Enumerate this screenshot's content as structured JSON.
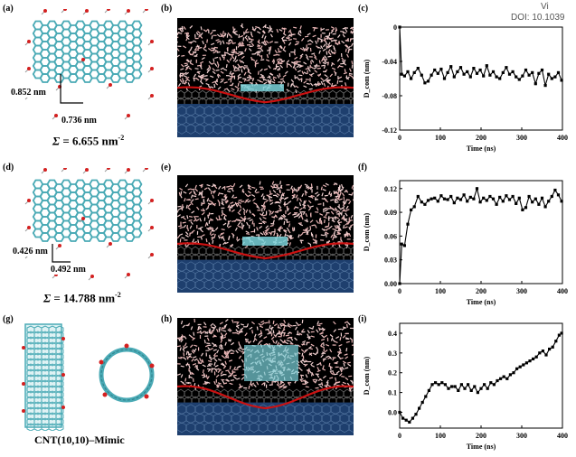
{
  "header": {
    "doi_text": "DOI: 10.1039",
    "doi_prefix": "Vi"
  },
  "panels": {
    "a": {
      "label": "(a)",
      "dim1": "0.852 nm",
      "dim2": "0.736 nm",
      "sigma_value": " = 6.655 nm",
      "sigma_exp": "-2"
    },
    "b": {
      "label": "(b)"
    },
    "c": {
      "label": "(c)"
    },
    "d": {
      "label": "(d)",
      "dim1": "0.426 nm",
      "dim2": "0.492 nm",
      "sigma_value": " = 14.788 nm",
      "sigma_exp": "-2"
    },
    "e": {
      "label": "(e)"
    },
    "f": {
      "label": "(f)"
    },
    "g": {
      "label": "(g)",
      "caption": "CNT(10,10)–Mimic"
    },
    "h": {
      "label": "(h)"
    },
    "i": {
      "label": "(i)"
    }
  },
  "sigma_symbol": "Σ",
  "colors": {
    "graphene": "#4aaab5",
    "water_bg": "#e8b4b4",
    "substrate": "#1e3f6e",
    "interface_curve": "#cc1111",
    "functional_O": "#d42020"
  },
  "chart_data": [
    {
      "id": "c",
      "type": "line",
      "xlabel": "Time (ns)",
      "ylabel": "D_com (nm)",
      "xlim": [
        0,
        400
      ],
      "ylim": [
        -0.12,
        0
      ],
      "xticks": [
        0,
        100,
        200,
        300,
        400
      ],
      "yticks": [
        0,
        -0.04,
        -0.08,
        -0.12
      ],
      "ytick_labels": [
        "0",
        "-0.04",
        "-0.08",
        "-0.12"
      ],
      "series": [
        {
          "x": [
            0,
            5,
            12,
            20,
            28,
            36,
            45,
            54,
            62,
            70,
            78,
            86,
            94,
            102,
            110,
            118,
            126,
            134,
            142,
            150,
            158,
            166,
            174,
            182,
            190,
            198,
            206,
            214,
            222,
            230,
            238,
            246,
            254,
            262,
            270,
            278,
            286,
            294,
            302,
            310,
            318,
            326,
            334,
            342,
            350,
            358,
            366,
            374,
            382,
            390,
            398
          ],
          "y": [
            0,
            -0.055,
            -0.057,
            -0.052,
            -0.06,
            -0.053,
            -0.048,
            -0.056,
            -0.065,
            -0.063,
            -0.056,
            -0.05,
            -0.054,
            -0.049,
            -0.06,
            -0.053,
            -0.046,
            -0.058,
            -0.052,
            -0.047,
            -0.055,
            -0.052,
            -0.058,
            -0.048,
            -0.054,
            -0.05,
            -0.057,
            -0.045,
            -0.056,
            -0.052,
            -0.058,
            -0.06,
            -0.053,
            -0.047,
            -0.055,
            -0.052,
            -0.058,
            -0.061,
            -0.057,
            -0.05,
            -0.056,
            -0.053,
            -0.066,
            -0.054,
            -0.05,
            -0.068,
            -0.055,
            -0.06,
            -0.058,
            -0.053,
            -0.062
          ]
        }
      ]
    },
    {
      "id": "f",
      "type": "line",
      "xlabel": "Time (ns)",
      "ylabel": "D_com (nm)",
      "xlim": [
        0,
        400
      ],
      "ylim": [
        0,
        0.13
      ],
      "xticks": [
        0,
        100,
        200,
        300,
        400
      ],
      "yticks": [
        0,
        0.03,
        0.06,
        0.09,
        0.12
      ],
      "ytick_labels": [
        "0.00",
        "0.03",
        "0.06",
        "0.09",
        "0.12"
      ],
      "series": [
        {
          "x": [
            0,
            5,
            12,
            20,
            28,
            36,
            45,
            54,
            62,
            70,
            78,
            86,
            94,
            102,
            110,
            118,
            126,
            134,
            142,
            150,
            158,
            166,
            174,
            182,
            190,
            198,
            206,
            214,
            222,
            230,
            238,
            246,
            254,
            262,
            270,
            278,
            286,
            294,
            302,
            310,
            318,
            326,
            334,
            342,
            350,
            358,
            366,
            374,
            382,
            390,
            398
          ],
          "y": [
            0,
            0.05,
            0.048,
            0.075,
            0.093,
            0.097,
            0.11,
            0.103,
            0.1,
            0.105,
            0.107,
            0.108,
            0.104,
            0.111,
            0.107,
            0.106,
            0.11,
            0.102,
            0.108,
            0.106,
            0.112,
            0.104,
            0.109,
            0.107,
            0.12,
            0.103,
            0.108,
            0.105,
            0.11,
            0.107,
            0.1,
            0.109,
            0.104,
            0.111,
            0.106,
            0.11,
            0.101,
            0.108,
            0.093,
            0.096,
            0.11,
            0.103,
            0.107,
            0.1,
            0.108,
            0.097,
            0.104,
            0.11,
            0.118,
            0.112,
            0.104
          ]
        }
      ]
    },
    {
      "id": "i",
      "type": "line",
      "xlabel": "Time (ns)",
      "ylabel": "D_com (nm)",
      "xlim": [
        0,
        400
      ],
      "ylim": [
        -0.08,
        0.45
      ],
      "xticks": [
        0,
        100,
        200,
        300,
        400
      ],
      "yticks": [
        0,
        0.1,
        0.2,
        0.3,
        0.4
      ],
      "ytick_labels": [
        "0.0",
        "0.1",
        "0.2",
        "0.3",
        "0.4"
      ],
      "series": [
        {
          "x": [
            0,
            8,
            16,
            24,
            32,
            40,
            48,
            56,
            64,
            72,
            80,
            88,
            96,
            104,
            112,
            120,
            128,
            136,
            144,
            152,
            160,
            168,
            176,
            184,
            192,
            200,
            208,
            216,
            224,
            232,
            240,
            248,
            256,
            264,
            272,
            280,
            288,
            296,
            304,
            312,
            320,
            328,
            336,
            344,
            352,
            360,
            368,
            376,
            384,
            392,
            398
          ],
          "y": [
            0,
            -0.03,
            -0.04,
            -0.05,
            -0.03,
            -0.01,
            0.02,
            0.05,
            0.08,
            0.11,
            0.14,
            0.15,
            0.14,
            0.15,
            0.14,
            0.12,
            0.13,
            0.13,
            0.11,
            0.14,
            0.12,
            0.14,
            0.11,
            0.13,
            0.1,
            0.12,
            0.14,
            0.12,
            0.15,
            0.14,
            0.16,
            0.17,
            0.18,
            0.17,
            0.19,
            0.2,
            0.22,
            0.23,
            0.24,
            0.25,
            0.26,
            0.27,
            0.28,
            0.3,
            0.31,
            0.29,
            0.32,
            0.33,
            0.36,
            0.39,
            0.4
          ]
        }
      ]
    }
  ]
}
